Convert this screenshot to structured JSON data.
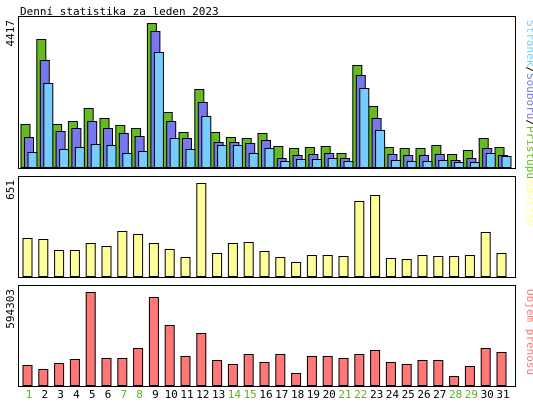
{
  "title": "Denní statistika za leden 2023",
  "colors": {
    "pristupu": "#66bb22",
    "souboru": "#7777ee",
    "stranek": "#77ccff",
    "navstev": "#ffff99",
    "prenos": "#ff7777",
    "weekend_label": "#66aa22",
    "weekday_label": "#000000",
    "border": "#000000"
  },
  "chart_data": [
    {
      "type": "bar",
      "title": "",
      "ylabel": "4417",
      "ymax": 4417,
      "legend": [
        "Přístupů",
        "Souborů",
        "Stránek"
      ],
      "series": [
        {
          "name": "Přístupů",
          "values": [
            1320,
            3930,
            1320,
            1420,
            1800,
            1510,
            1290,
            1200,
            4417,
            1680,
            1060,
            2380,
            1060,
            910,
            890,
            1050,
            650,
            580,
            610,
            640,
            430,
            3130,
            1860,
            620,
            570,
            570,
            670,
            390,
            510,
            880,
            620
          ]
        },
        {
          "name": "Souborů",
          "values": [
            930,
            3270,
            1110,
            1190,
            1400,
            1190,
            1050,
            950,
            4180,
            1400,
            900,
            2000,
            780,
            760,
            740,
            840,
            290,
            370,
            390,
            440,
            290,
            2830,
            1510,
            400,
            370,
            370,
            400,
            230,
            270,
            570,
            380
          ]
        },
        {
          "name": "Stránek",
          "values": [
            460,
            2570,
            540,
            600,
            720,
            690,
            420,
            490,
            3540,
            880,
            560,
            1560,
            690,
            660,
            420,
            570,
            190,
            240,
            260,
            290,
            170,
            2420,
            1120,
            220,
            190,
            190,
            230,
            150,
            150,
            430,
            330
          ]
        }
      ]
    },
    {
      "type": "bar",
      "title": "",
      "ylabel": "651",
      "ymax": 651,
      "legend": [
        "Návštěv"
      ],
      "series": [
        {
          "name": "Návštěv",
          "values": [
            265,
            258,
            183,
            185,
            228,
            209,
            318,
            291,
            229,
            188,
            130,
            651,
            161,
            228,
            238,
            177,
            133,
            100,
            145,
            150,
            141,
            527,
            564,
            128,
            121,
            150,
            141,
            142,
            145,
            306,
            161
          ]
        }
      ]
    },
    {
      "type": "bar",
      "title": "",
      "ylabel": "594303",
      "ymax": 594303,
      "legend": [
        "Objem přenosu"
      ],
      "series": [
        {
          "name": "Objem přenosu",
          "values": [
            125000,
            103000,
            138000,
            164000,
            594303,
            172000,
            172000,
            238000,
            561000,
            385000,
            185000,
            330000,
            159000,
            132000,
            198000,
            145000,
            198000,
            79000,
            185000,
            185000,
            172000,
            198000,
            224000,
            145000,
            132000,
            159000,
            159000,
            59000,
            119000,
            238000,
            211000
          ]
        }
      ]
    }
  ],
  "days": [
    "1",
    "2",
    "3",
    "4",
    "5",
    "6",
    "7",
    "8",
    "9",
    "10",
    "11",
    "12",
    "13",
    "14",
    "15",
    "16",
    "17",
    "18",
    "19",
    "20",
    "21",
    "22",
    "23",
    "24",
    "25",
    "26",
    "27",
    "28",
    "29",
    "30",
    "31"
  ],
  "weekend_days": [
    1,
    7,
    8,
    14,
    15,
    21,
    22,
    28,
    29
  ]
}
